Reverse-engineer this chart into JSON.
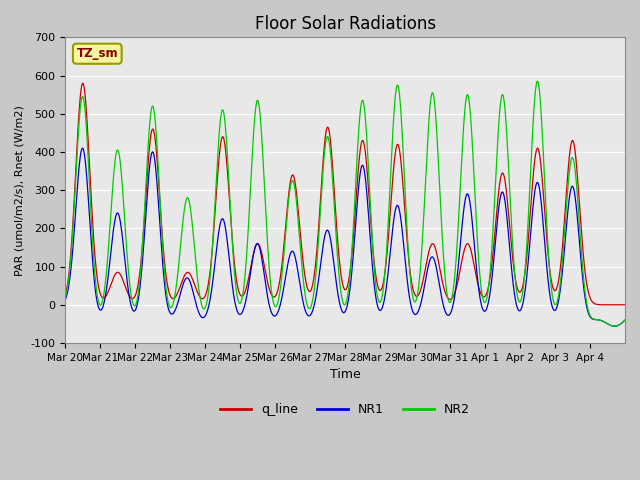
{
  "title": "Floor Solar Radiations",
  "xlabel": "Time",
  "ylabel": "PAR (umol/m2/s), Rnet (W/m2)",
  "ylim": [
    -100,
    700
  ],
  "yticks": [
    -100,
    0,
    100,
    200,
    300,
    400,
    500,
    600,
    700
  ],
  "colors": {
    "q_line": "#cc0000",
    "NR1": "#0000cc",
    "NR2": "#00cc00"
  },
  "x_tick_labels": [
    "Mar 20",
    "Mar 21",
    "Mar 22",
    "Mar 23",
    "Mar 24",
    "Mar 25",
    "Mar 26",
    "Mar 27",
    "Mar 28",
    "Mar 29",
    "Mar 30",
    "Mar 31",
    "Apr 1",
    "Apr 2",
    "Apr 3",
    "Apr 4"
  ],
  "peak_q": [
    580,
    85,
    460,
    85,
    440,
    160,
    340,
    465,
    430,
    420,
    160,
    160,
    345,
    410,
    430,
    0
  ],
  "peak_NR1": [
    455,
    290,
    450,
    120,
    275,
    210,
    190,
    245,
    415,
    310,
    175,
    340,
    345,
    370,
    360,
    0
  ],
  "peak_NR2": [
    590,
    455,
    570,
    330,
    560,
    585,
    375,
    490,
    585,
    625,
    605,
    600,
    600,
    635,
    435,
    0
  ],
  "trough_NR1": -55,
  "trough_NR2": -55,
  "fig_bg": "#c8c8c8",
  "ax_bg": "#e8e8e8"
}
